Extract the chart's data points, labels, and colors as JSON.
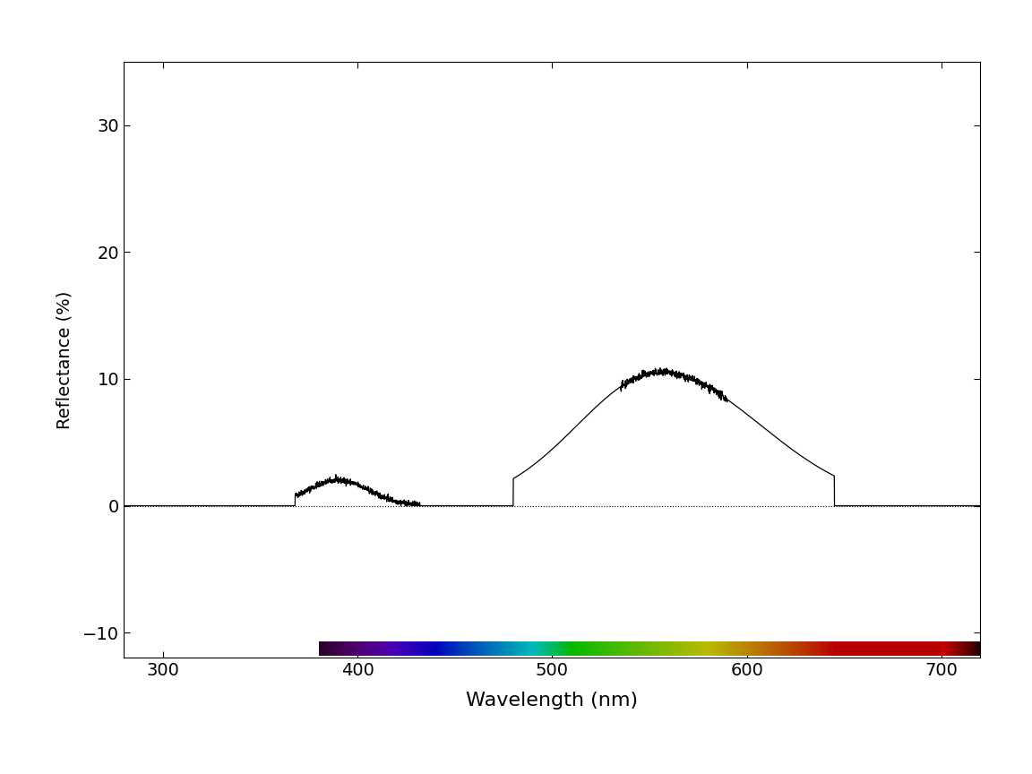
{
  "xlabel": "Wavelength (nm)",
  "ylabel": "Reflectance (%)",
  "xlim": [
    280,
    720
  ],
  "ylim": [
    -12,
    35
  ],
  "yticks": [
    -10,
    0,
    10,
    20,
    30
  ],
  "xticks": [
    300,
    400,
    500,
    600,
    700
  ],
  "line_color": "#000000",
  "dotted_line_color": "#000000",
  "background_color": "#ffffff",
  "spectrum_start_nm": 380,
  "spectrum_end_nm": 720,
  "xlabel_fontsize": 16,
  "ylabel_fontsize": 14,
  "tick_fontsize": 14,
  "figsize": [
    11.52,
    8.64
  ],
  "dpi": 100
}
